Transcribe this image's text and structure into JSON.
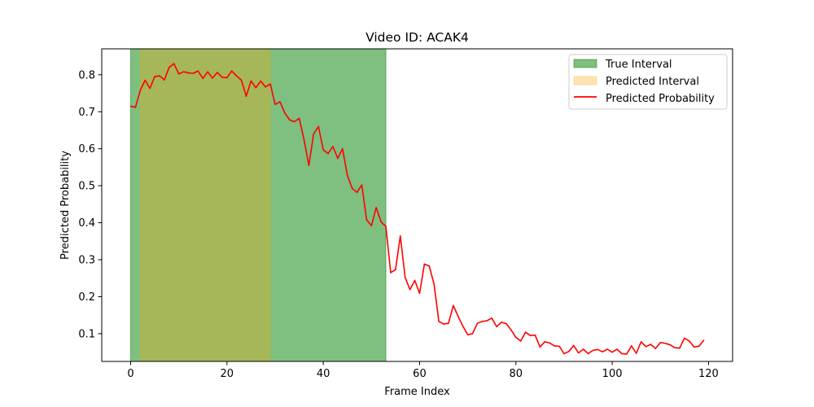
{
  "chart_data": {
    "type": "line",
    "title": "Video ID: ACAK4",
    "xlabel": "Frame Index",
    "ylabel": "Predicted Probability",
    "xlim": [
      -6,
      125
    ],
    "ylim": [
      0.025,
      0.87
    ],
    "xticks": [
      0,
      20,
      40,
      60,
      80,
      100,
      120
    ],
    "yticks": [
      0.1,
      0.2,
      0.3,
      0.4,
      0.5,
      0.6,
      0.7,
      0.8
    ],
    "grid": false,
    "legend_position": "top-right",
    "legend": [
      "True Interval",
      "Predicted Interval",
      "Predicted Probability"
    ],
    "intervals": [
      {
        "name": "True Interval",
        "start": 0,
        "end": 53,
        "color": "#008000",
        "opacity": 0.5
      },
      {
        "name": "Predicted Interval",
        "start": 2,
        "end": 29,
        "color": "#ffa500",
        "opacity": 0.3
      }
    ],
    "series": [
      {
        "name": "Predicted Probability",
        "color": "#ff0000",
        "x": [
          0,
          1,
          2,
          3,
          4,
          5,
          6,
          7,
          8,
          9,
          10,
          11,
          12,
          13,
          14,
          15,
          16,
          17,
          18,
          19,
          20,
          21,
          22,
          23,
          24,
          25,
          26,
          27,
          28,
          29,
          30,
          31,
          32,
          33,
          34,
          35,
          36,
          37,
          38,
          39,
          40,
          41,
          42,
          43,
          44,
          45,
          46,
          47,
          48,
          49,
          50,
          51,
          52,
          53,
          54,
          55,
          56,
          57,
          58,
          59,
          60,
          61,
          62,
          63,
          64,
          65,
          66,
          67,
          68,
          69,
          70,
          71,
          72,
          73,
          74,
          75,
          76,
          77,
          78,
          79,
          80,
          81,
          82,
          83,
          84,
          85,
          86,
          87,
          88,
          89,
          90,
          91,
          92,
          93,
          94,
          95,
          96,
          97,
          98,
          99,
          100,
          101,
          102,
          103,
          104,
          105,
          106,
          107,
          108,
          109,
          110,
          111,
          112,
          113,
          114,
          115,
          116,
          117,
          118,
          119
        ],
        "values": [
          0.715,
          0.712,
          0.758,
          0.785,
          0.763,
          0.795,
          0.797,
          0.786,
          0.82,
          0.83,
          0.802,
          0.808,
          0.805,
          0.804,
          0.81,
          0.79,
          0.808,
          0.791,
          0.806,
          0.793,
          0.792,
          0.81,
          0.797,
          0.785,
          0.742,
          0.783,
          0.765,
          0.783,
          0.767,
          0.775,
          0.72,
          0.727,
          0.697,
          0.678,
          0.673,
          0.682,
          0.625,
          0.555,
          0.64,
          0.66,
          0.597,
          0.587,
          0.606,
          0.574,
          0.6,
          0.528,
          0.493,
          0.482,
          0.502,
          0.408,
          0.392,
          0.441,
          0.402,
          0.39,
          0.265,
          0.273,
          0.364,
          0.252,
          0.219,
          0.244,
          0.209,
          0.288,
          0.283,
          0.234,
          0.133,
          0.126,
          0.128,
          0.176,
          0.147,
          0.12,
          0.097,
          0.1,
          0.128,
          0.133,
          0.135,
          0.142,
          0.119,
          0.131,
          0.127,
          0.11,
          0.09,
          0.08,
          0.104,
          0.095,
          0.096,
          0.064,
          0.078,
          0.075,
          0.067,
          0.066,
          0.046,
          0.052,
          0.068,
          0.048,
          0.058,
          0.046,
          0.055,
          0.057,
          0.051,
          0.058,
          0.05,
          0.058,
          0.046,
          0.045,
          0.067,
          0.047,
          0.078,
          0.065,
          0.071,
          0.06,
          0.076,
          0.074,
          0.07,
          0.062,
          0.061,
          0.088,
          0.08,
          0.064,
          0.066,
          0.082
        ]
      }
    ]
  }
}
